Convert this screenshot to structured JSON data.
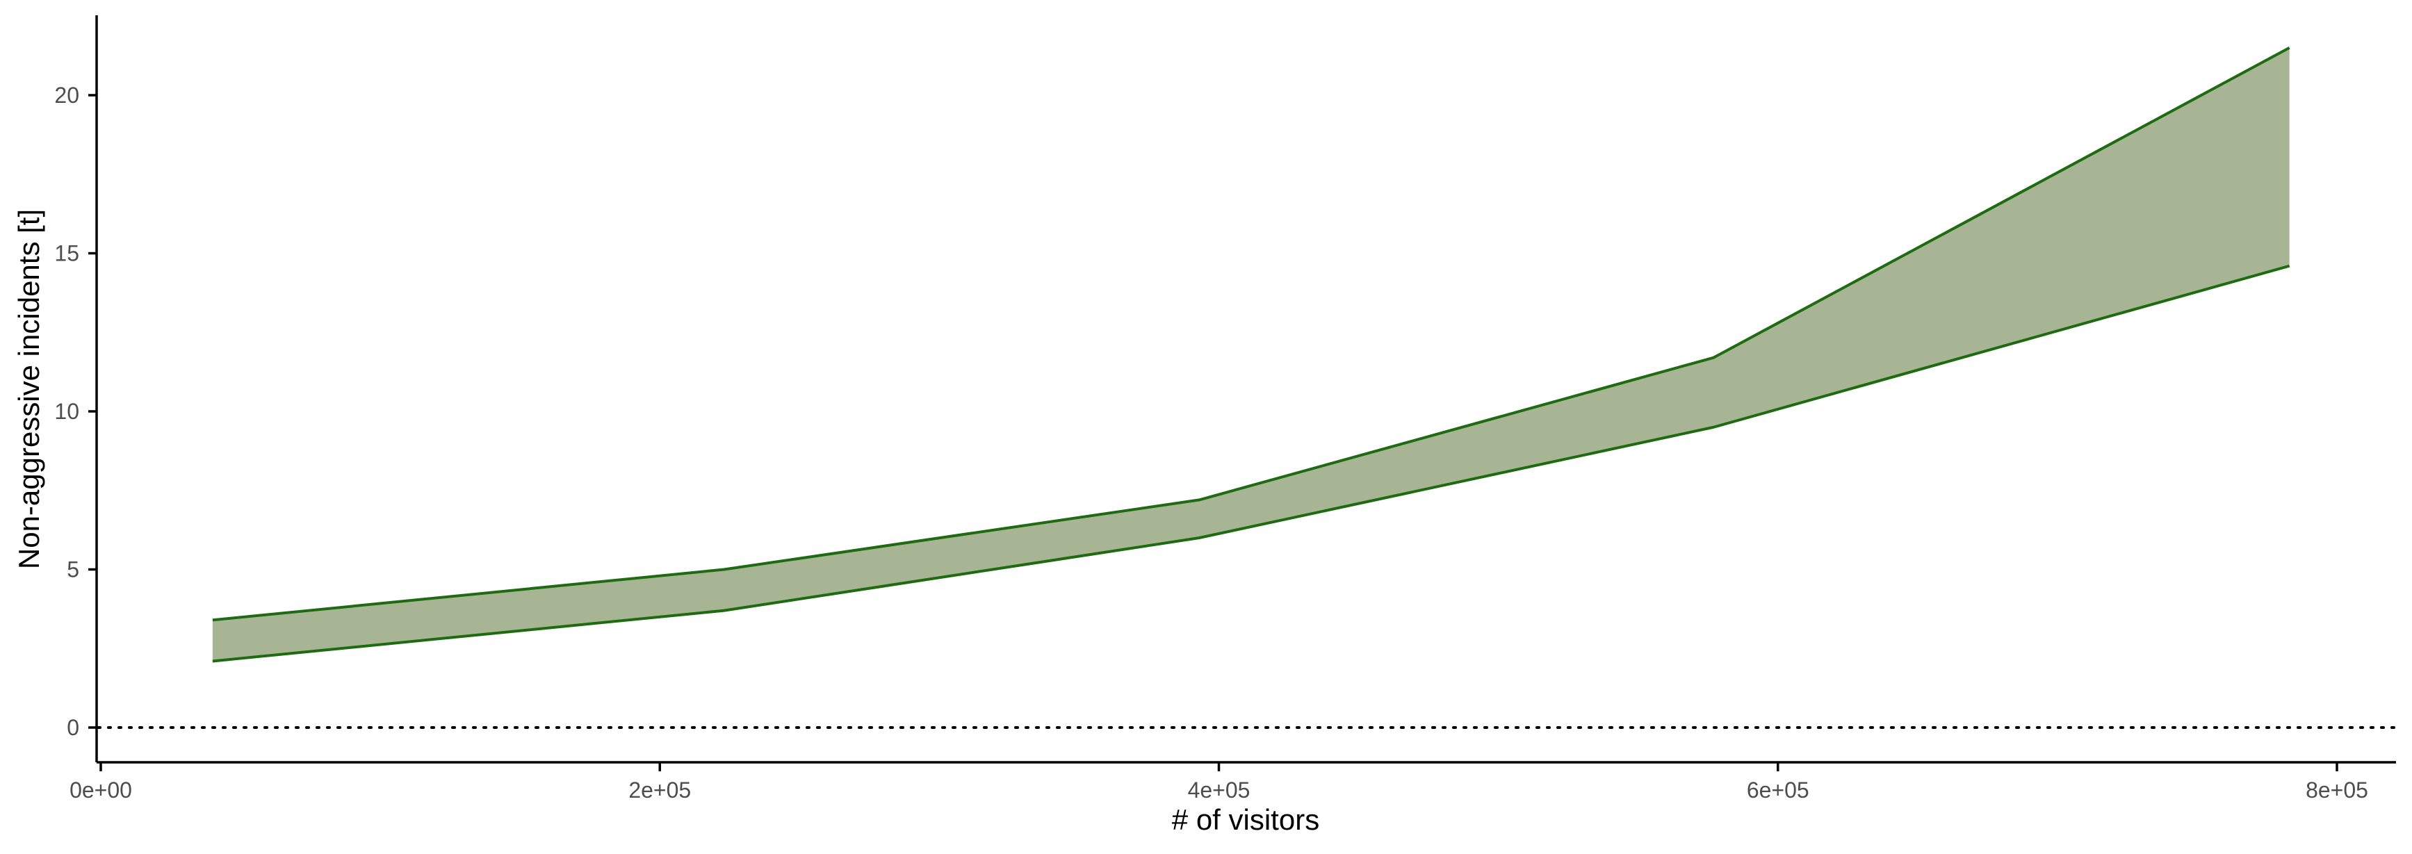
{
  "chart_data": {
    "type": "area",
    "title": "",
    "xlabel": "# of visitors",
    "ylabel": "Non-aggressive incidents [t]",
    "x": [
      40000,
      223000,
      393000,
      577000,
      783000
    ],
    "series": [
      {
        "role": "lower",
        "values": [
          2.1,
          3.7,
          6.0,
          9.5,
          14.6
        ]
      },
      {
        "role": "upper",
        "values": [
          3.4,
          5.0,
          7.2,
          11.7,
          21.5
        ]
      }
    ],
    "xlim": [
      0,
      800000
    ],
    "ylim": [
      0,
      22
    ],
    "x_ticks": [
      0,
      200000,
      400000,
      600000,
      800000
    ],
    "x_tick_labels": [
      "0e+00",
      "2e+05",
      "4e+05",
      "6e+05",
      "8e+05"
    ],
    "y_ticks": [
      0,
      5,
      10,
      15,
      20
    ],
    "y_tick_labels": [
      "0",
      "5",
      "10",
      "15",
      "20"
    ],
    "reference_line": {
      "y": 0,
      "style": "dotted"
    },
    "grid": false,
    "colors": {
      "fill": "#a8b594",
      "stroke": "#1f6b12"
    }
  }
}
